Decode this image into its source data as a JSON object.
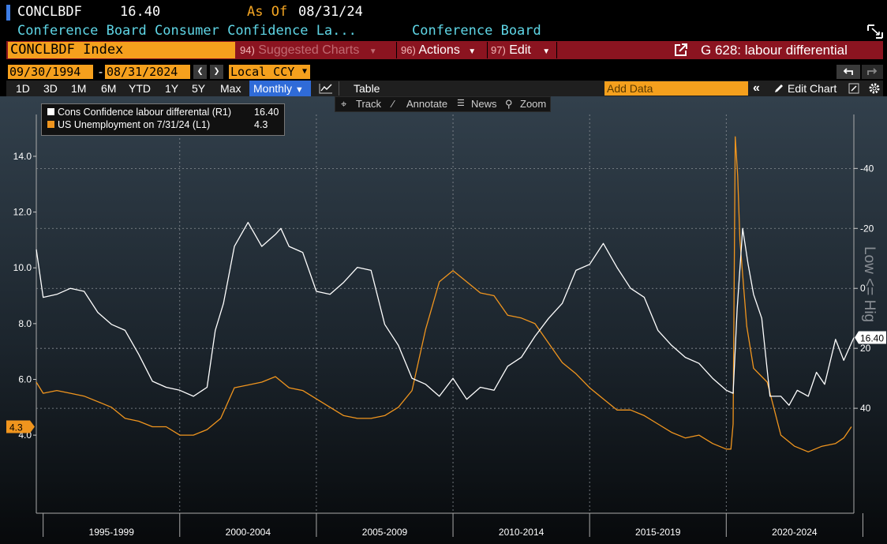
{
  "header": {
    "ticker": "CONCLBDF",
    "price": "16.40",
    "as_of_label": "As Of",
    "as_of_date": "08/31/24",
    "series_name": "Conference Board Consumer Confidence La...",
    "source": "Conference Board"
  },
  "menubar": {
    "security": "CONCLBDF Index",
    "suggested_num": "94)",
    "suggested": "Suggested Charts",
    "actions_num": "96)",
    "actions": "Actions",
    "edit_num": "97)",
    "edit": "Edit",
    "chart_title": "G 628: labour differential"
  },
  "daterow": {
    "start": "09/30/1994",
    "dash": "-",
    "end": "08/31/2024",
    "currency": "Local CCY"
  },
  "toolbar": {
    "periods": [
      "1D",
      "3D",
      "1M",
      "6M",
      "YTD",
      "1Y",
      "5Y",
      "Max"
    ],
    "frequency": "Monthly",
    "table": "Table",
    "add_data_placeholder": "Add Data",
    "edit_chart": "Edit Chart"
  },
  "chart_tools": {
    "track": "Track",
    "annotate": "Annotate",
    "news": "News",
    "zoom": "Zoom"
  },
  "colors": {
    "labour_differential": "#ffffff",
    "unemployment": "#f0951e",
    "accent_orange": "#f5a01d",
    "menubar_red": "#8b1420",
    "cyan_text": "#5fd6e6"
  },
  "chart_data": {
    "type": "line",
    "title": "",
    "legend_position": "top-left",
    "grid": true,
    "x_range": [
      1994.75,
      2024.67
    ],
    "x_categories": [
      "1995-1999",
      "2000-2004",
      "2005-2009",
      "2010-2014",
      "2015-2019",
      "2020-2024"
    ],
    "left_axis": {
      "ticks": [
        "14.0",
        "12.0",
        "10.0",
        "8.0",
        "6.0",
        "4.0"
      ],
      "range": [
        1.2,
        15.5
      ],
      "last_value_label": "4.3"
    },
    "right_axis": {
      "ticks": [
        "-40",
        "-20",
        "0",
        "20",
        "40"
      ],
      "range": [
        -58,
        75
      ],
      "inverted": true,
      "label": "Low <= Hig",
      "last_value_label": "16.40"
    },
    "series": [
      {
        "name": "Cons Confidence labour differental (R1)",
        "legend_value": "16.40",
        "axis": "right",
        "x": [
          1994.75,
          1995.0,
          1995.5,
          1996.0,
          1996.5,
          1997.0,
          1997.5,
          1998.0,
          1998.5,
          1999.0,
          1999.5,
          2000.0,
          2000.5,
          2001.0,
          2001.3,
          2001.6,
          2002.0,
          2002.5,
          2003.0,
          2003.5,
          2003.7,
          2004.0,
          2004.5,
          2005.0,
          2005.5,
          2006.0,
          2006.5,
          2007.0,
          2007.5,
          2008.0,
          2008.5,
          2009.0,
          2009.5,
          2010.0,
          2010.5,
          2011.0,
          2011.5,
          2012.0,
          2012.5,
          2013.0,
          2013.5,
          2014.0,
          2014.5,
          2015.0,
          2015.5,
          2016.0,
          2016.5,
          2017.0,
          2017.5,
          2018.0,
          2018.5,
          2019.0,
          2019.5,
          2020.0,
          2020.25,
          2020.4,
          2020.6,
          2020.8,
          2021.0,
          2021.3,
          2021.6,
          2022.0,
          2022.3,
          2022.6,
          2023.0,
          2023.3,
          2023.6,
          2024.0,
          2024.3,
          2024.67
        ],
        "values": [
          -13,
          3,
          2,
          0,
          1,
          8,
          12,
          14,
          22,
          31,
          33,
          34,
          36,
          33,
          14,
          5,
          -14,
          -22,
          -14,
          -18,
          -20,
          -14,
          -12,
          1,
          2,
          -2,
          -7,
          -6,
          12,
          19,
          30,
          32,
          36,
          30,
          37,
          33,
          34,
          26,
          23,
          16,
          10,
          5,
          -6,
          -8,
          -15,
          -7,
          0,
          3,
          14,
          19,
          23,
          25,
          30,
          34,
          35,
          7,
          -20,
          -8,
          2,
          10,
          36,
          36,
          39,
          34,
          36,
          28,
          32,
          17,
          24,
          16.4
        ]
      },
      {
        "name": "US Unemployment on 7/31/24 (L1)",
        "legend_value": "4.3",
        "axis": "left",
        "x": [
          1994.75,
          1995.0,
          1995.5,
          1996.0,
          1996.5,
          1997.0,
          1997.5,
          1998.0,
          1998.5,
          1999.0,
          1999.5,
          2000.0,
          2000.5,
          2001.0,
          2001.5,
          2002.0,
          2002.5,
          2003.0,
          2003.5,
          2004.0,
          2004.5,
          2005.0,
          2005.5,
          2006.0,
          2006.5,
          2007.0,
          2007.5,
          2008.0,
          2008.5,
          2009.0,
          2009.5,
          2010.0,
          2010.5,
          2011.0,
          2011.5,
          2012.0,
          2012.5,
          2013.0,
          2013.5,
          2014.0,
          2014.5,
          2015.0,
          2015.5,
          2016.0,
          2016.5,
          2017.0,
          2017.5,
          2018.0,
          2018.5,
          2019.0,
          2019.5,
          2020.0,
          2020.17,
          2020.25,
          2020.33,
          2020.42,
          2020.5,
          2020.75,
          2021.0,
          2021.5,
          2022.0,
          2022.5,
          2023.0,
          2023.5,
          2024.0,
          2024.3,
          2024.58
        ],
        "values": [
          5.9,
          5.5,
          5.6,
          5.5,
          5.4,
          5.2,
          5.0,
          4.6,
          4.5,
          4.3,
          4.3,
          4.0,
          4.0,
          4.2,
          4.6,
          5.7,
          5.8,
          5.9,
          6.1,
          5.7,
          5.6,
          5.3,
          5.0,
          4.7,
          4.6,
          4.6,
          4.7,
          5.0,
          5.6,
          7.8,
          9.5,
          9.9,
          9.5,
          9.1,
          9.0,
          8.3,
          8.2,
          8.0,
          7.3,
          6.6,
          6.2,
          5.7,
          5.3,
          4.9,
          4.9,
          4.7,
          4.4,
          4.1,
          3.9,
          4.0,
          3.7,
          3.5,
          3.5,
          4.4,
          14.7,
          13.3,
          11.0,
          7.9,
          6.4,
          5.9,
          4.0,
          3.6,
          3.4,
          3.6,
          3.7,
          3.9,
          4.3
        ]
      }
    ]
  }
}
